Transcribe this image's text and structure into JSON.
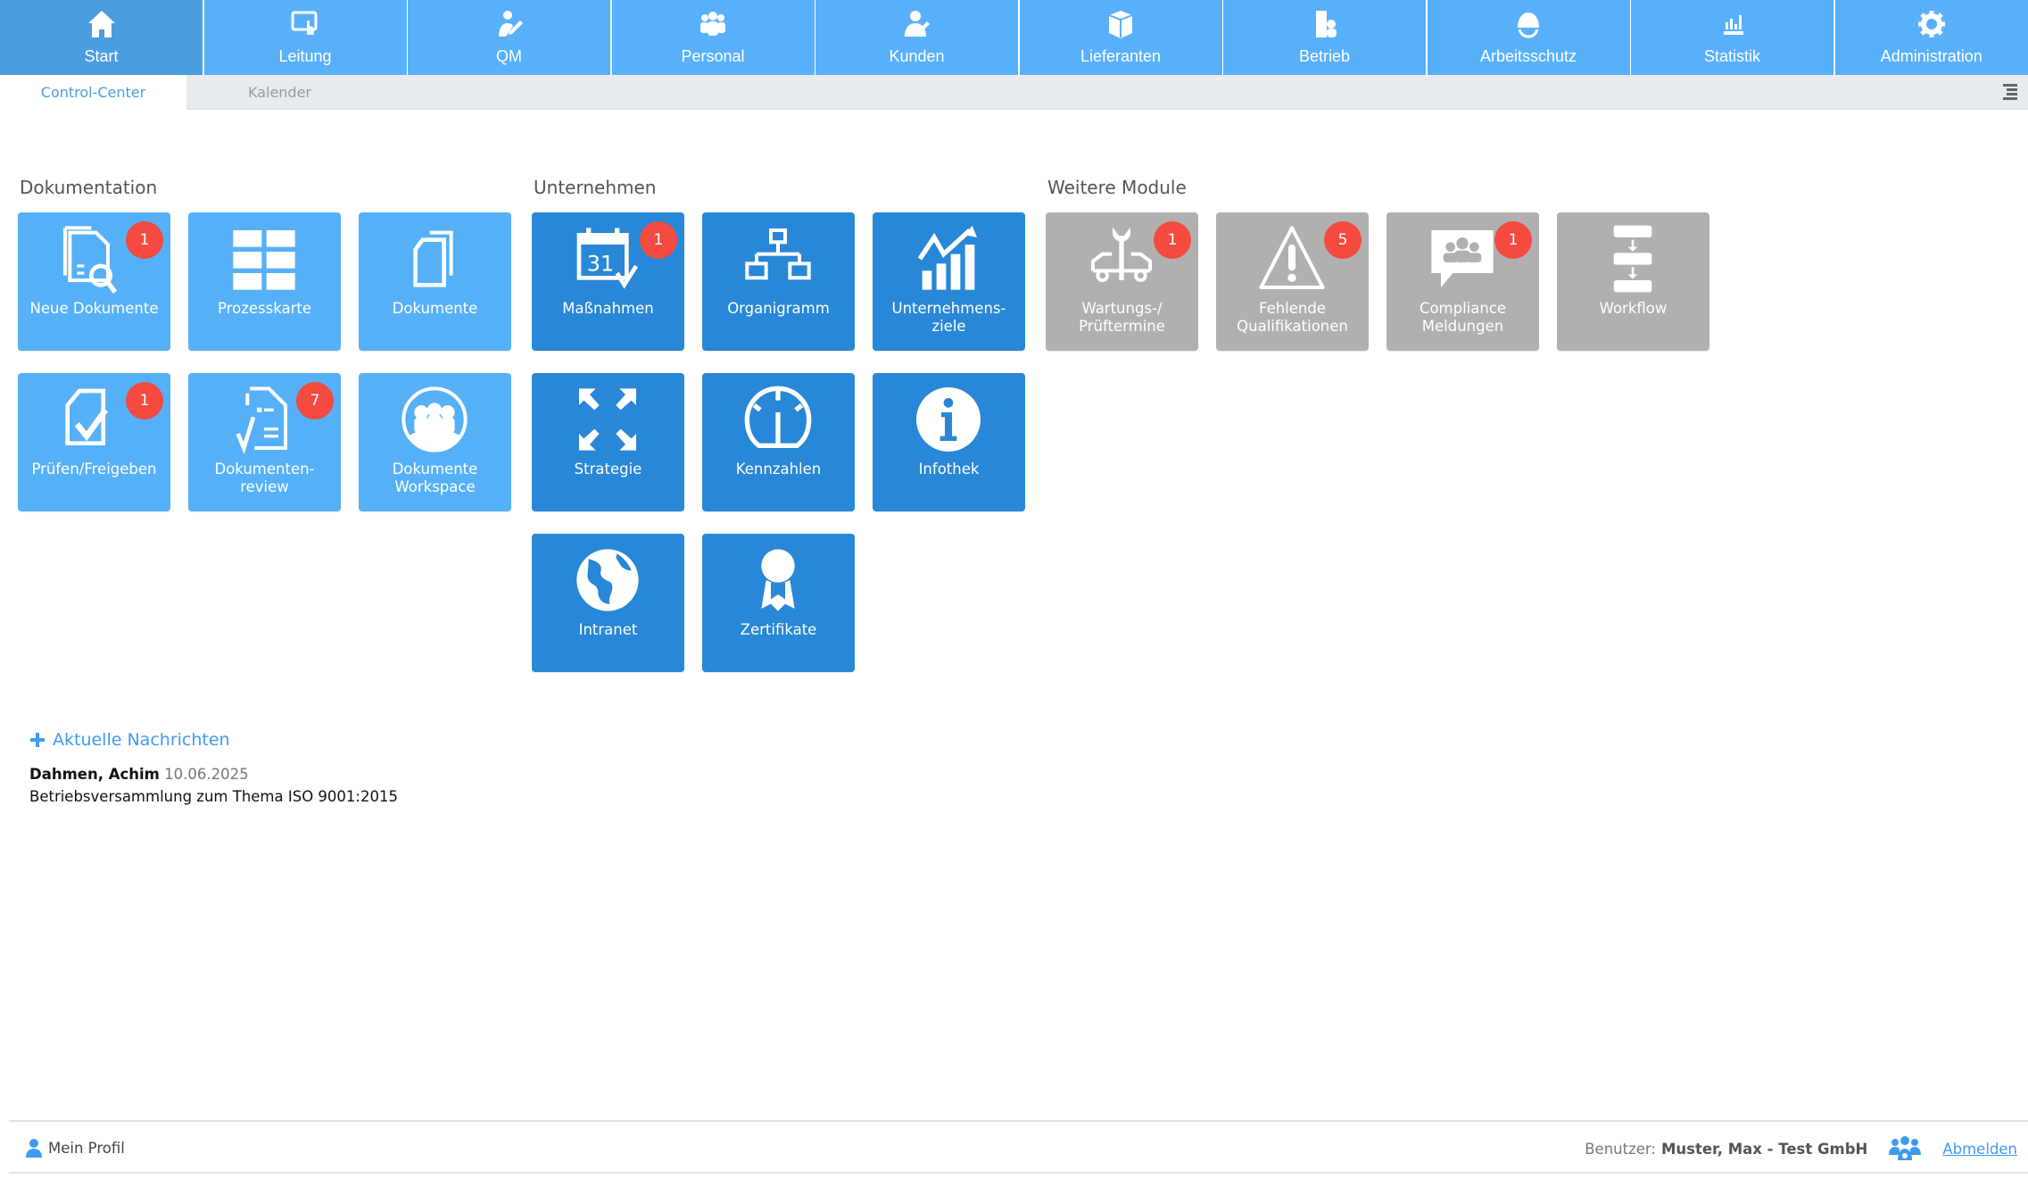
{
  "colors": {
    "nav": "#58b0fb",
    "nav_active": "#4a9ddf",
    "tile_light": "#56b0f8",
    "tile_dark": "#2887d6",
    "tile_grey": "#b0b0b0",
    "badge": "#f44a3f",
    "link": "#3e9bf0"
  },
  "nav": [
    {
      "label": "Start",
      "icon": "home-icon",
      "active": true
    },
    {
      "label": "Leitung",
      "icon": "touch-screen-icon"
    },
    {
      "label": "QM",
      "icon": "user-pen-icon"
    },
    {
      "label": "Personal",
      "icon": "group-icon"
    },
    {
      "label": "Kunden",
      "icon": "customer-icon"
    },
    {
      "label": "Lieferanten",
      "icon": "box-icon"
    },
    {
      "label": "Betrieb",
      "icon": "building-icon"
    },
    {
      "label": "Arbeitsschutz",
      "icon": "helmet-icon"
    },
    {
      "label": "Statistik",
      "icon": "bar-chart-icon"
    },
    {
      "label": "Administration",
      "icon": "gear-icon"
    }
  ],
  "subnav": {
    "tabs": [
      {
        "label": "Control-Center",
        "active": true
      },
      {
        "label": "Kalender"
      }
    ],
    "menu_icon": "list-menu-icon"
  },
  "sections": [
    {
      "title": "Dokumentation",
      "style": "light",
      "tiles": [
        {
          "label": "Neue Dokumente",
          "icon": "document-search-icon",
          "badge": "1"
        },
        {
          "label": "Prozesskarte",
          "icon": "grid-icon"
        },
        {
          "label": "Dokumente",
          "icon": "documents-icon"
        },
        {
          "label": "Prüfen/Freigeben",
          "icon": "document-check-icon",
          "badge": "1"
        },
        {
          "label": "Dokumenten-\nreview",
          "icon": "document-review-icon",
          "badge": "7"
        },
        {
          "label": "Dokumente\nWorkspace",
          "icon": "workspace-group-icon"
        }
      ]
    },
    {
      "title": "Unternehmen",
      "style": "dark",
      "tiles": [
        {
          "label": "Maßnahmen",
          "icon": "calendar-check-icon",
          "badge": "1",
          "calendar_day": "31"
        },
        {
          "label": "Organigramm",
          "icon": "org-chart-icon"
        },
        {
          "label": "Unternehmens-\nziele",
          "icon": "growth-chart-icon"
        },
        {
          "label": "Strategie",
          "icon": "expand-arrows-icon"
        },
        {
          "label": "Kennzahlen",
          "icon": "gauge-icon"
        },
        {
          "label": "Infothek",
          "icon": "info-icon"
        },
        {
          "label": "Intranet",
          "icon": "globe-icon"
        },
        {
          "label": "Zertifikate",
          "icon": "award-icon"
        }
      ]
    },
    {
      "title": "Weitere Module",
      "style": "grey",
      "tiles": [
        {
          "label": "Wartungs-/\nPrüftermine",
          "icon": "car-wrench-icon",
          "badge": "1"
        },
        {
          "label": "Fehlende\nQualifikationen",
          "icon": "warning-icon",
          "badge": "5"
        },
        {
          "label": "Compliance\nMeldungen",
          "icon": "chat-group-icon",
          "badge": "1"
        },
        {
          "label": "Workflow",
          "icon": "workflow-icon"
        }
      ]
    }
  ],
  "news": {
    "toggle_label": "Aktuelle Nachrichten",
    "author": "Dahmen, Achim",
    "date": "10.06.2025",
    "text": "Betriebsversammlung zum Thema ISO 9001:2015"
  },
  "footer": {
    "profile_label": "Mein Profil",
    "user_prefix": "Benutzer:",
    "user_name": "Muster, Max - Test GmbH",
    "logout_label": "Abmelden"
  }
}
